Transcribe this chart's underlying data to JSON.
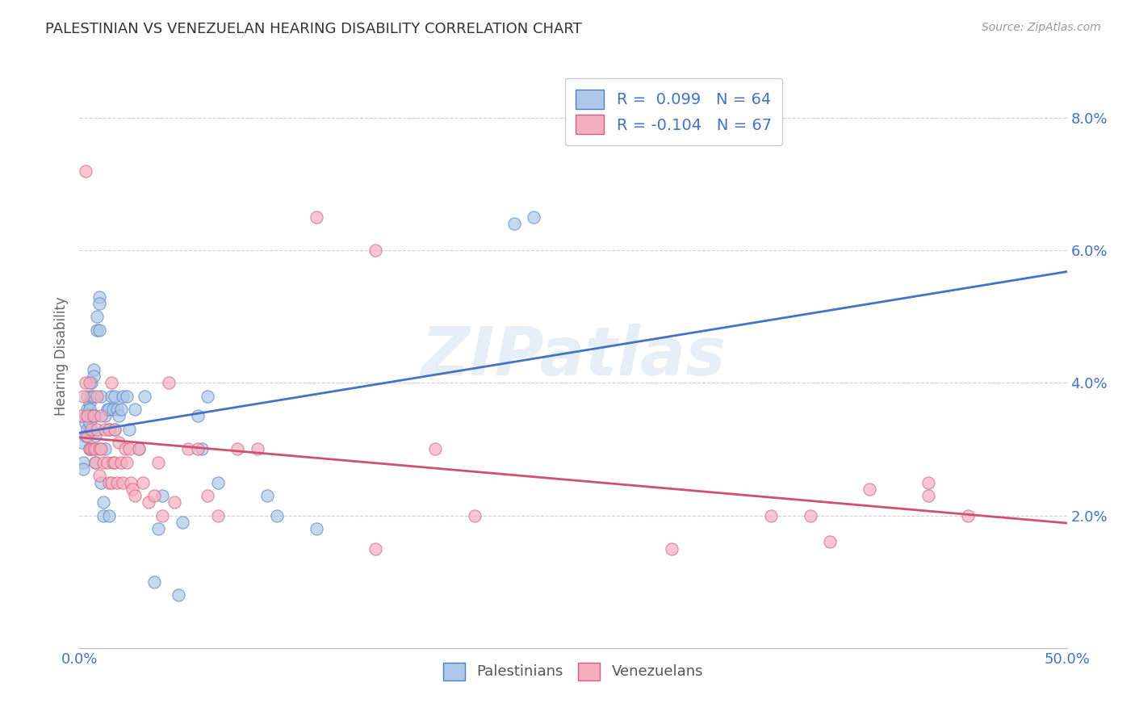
{
  "title": "PALESTINIAN VS VENEZUELAN HEARING DISABILITY CORRELATION CHART",
  "source": "Source: ZipAtlas.com",
  "ylabel": "Hearing Disability",
  "xlim": [
    0.0,
    0.5
  ],
  "ylim": [
    0.0,
    0.088
  ],
  "yticks": [
    0.02,
    0.04,
    0.06,
    0.08
  ],
  "ytick_labels": [
    "2.0%",
    "4.0%",
    "6.0%",
    "8.0%"
  ],
  "xticks": [
    0.0,
    0.1,
    0.2,
    0.3,
    0.4,
    0.5
  ],
  "xtick_labels": [
    "0.0%",
    "",
    "",
    "",
    "",
    "50.0%"
  ],
  "r_palestinian": 0.099,
  "n_palestinian": 64,
  "r_venezuelan": -0.104,
  "n_venezuelan": 67,
  "palestinian_color": "#adc8e8",
  "venezuelan_color": "#f5aec0",
  "palestinian_edge_color": "#5080c0",
  "venezuelan_edge_color": "#d06080",
  "palestinian_line_color": "#4472c4",
  "venezuelan_line_color": "#d05070",
  "watermark": "ZIPatlas",
  "legend_labels": [
    "Palestinians",
    "Venezuelans"
  ],
  "background_color": "#ffffff",
  "grid_color": "#d0d0d0",
  "title_color": "#333333",
  "axis_label_color": "#4472c4",
  "palestinian_x": [
    0.001,
    0.002,
    0.002,
    0.003,
    0.003,
    0.003,
    0.004,
    0.004,
    0.004,
    0.005,
    0.005,
    0.005,
    0.005,
    0.006,
    0.006,
    0.006,
    0.007,
    0.007,
    0.007,
    0.008,
    0.008,
    0.008,
    0.009,
    0.009,
    0.01,
    0.01,
    0.01,
    0.011,
    0.011,
    0.012,
    0.012,
    0.013,
    0.013,
    0.014,
    0.015,
    0.015,
    0.015,
    0.016,
    0.017,
    0.018,
    0.018,
    0.019,
    0.02,
    0.021,
    0.022,
    0.024,
    0.025,
    0.028,
    0.03,
    0.033,
    0.038,
    0.04,
    0.042,
    0.05,
    0.052,
    0.06,
    0.062,
    0.065,
    0.07,
    0.095,
    0.1,
    0.12,
    0.22,
    0.23
  ],
  "palestinian_y": [
    0.031,
    0.028,
    0.027,
    0.035,
    0.034,
    0.032,
    0.038,
    0.036,
    0.033,
    0.037,
    0.036,
    0.034,
    0.03,
    0.04,
    0.038,
    0.035,
    0.042,
    0.041,
    0.038,
    0.035,
    0.032,
    0.028,
    0.05,
    0.048,
    0.053,
    0.052,
    0.048,
    0.038,
    0.025,
    0.022,
    0.02,
    0.035,
    0.03,
    0.036,
    0.036,
    0.033,
    0.02,
    0.038,
    0.036,
    0.038,
    0.033,
    0.036,
    0.035,
    0.036,
    0.038,
    0.038,
    0.033,
    0.036,
    0.03,
    0.038,
    0.01,
    0.018,
    0.023,
    0.008,
    0.019,
    0.035,
    0.03,
    0.038,
    0.025,
    0.023,
    0.02,
    0.018,
    0.064,
    0.065
  ],
  "venezuelan_x": [
    0.001,
    0.002,
    0.003,
    0.003,
    0.004,
    0.004,
    0.005,
    0.005,
    0.006,
    0.006,
    0.007,
    0.007,
    0.008,
    0.008,
    0.009,
    0.009,
    0.01,
    0.01,
    0.011,
    0.011,
    0.012,
    0.013,
    0.014,
    0.015,
    0.015,
    0.016,
    0.016,
    0.017,
    0.018,
    0.018,
    0.019,
    0.02,
    0.021,
    0.022,
    0.023,
    0.024,
    0.025,
    0.026,
    0.027,
    0.028,
    0.03,
    0.032,
    0.035,
    0.038,
    0.04,
    0.042,
    0.045,
    0.048,
    0.055,
    0.06,
    0.065,
    0.07,
    0.08,
    0.09,
    0.12,
    0.15,
    0.18,
    0.2,
    0.3,
    0.35,
    0.37,
    0.4,
    0.43,
    0.45,
    0.15,
    0.38,
    0.43
  ],
  "venezuelan_y": [
    0.035,
    0.038,
    0.04,
    0.072,
    0.035,
    0.032,
    0.03,
    0.04,
    0.033,
    0.03,
    0.035,
    0.03,
    0.03,
    0.028,
    0.038,
    0.033,
    0.03,
    0.026,
    0.035,
    0.03,
    0.028,
    0.033,
    0.028,
    0.025,
    0.033,
    0.025,
    0.04,
    0.028,
    0.028,
    0.033,
    0.025,
    0.031,
    0.028,
    0.025,
    0.03,
    0.028,
    0.03,
    0.025,
    0.024,
    0.023,
    0.03,
    0.025,
    0.022,
    0.023,
    0.028,
    0.02,
    0.04,
    0.022,
    0.03,
    0.03,
    0.023,
    0.02,
    0.03,
    0.03,
    0.065,
    0.06,
    0.03,
    0.02,
    0.015,
    0.02,
    0.02,
    0.024,
    0.023,
    0.02,
    0.015,
    0.016,
    0.025
  ]
}
